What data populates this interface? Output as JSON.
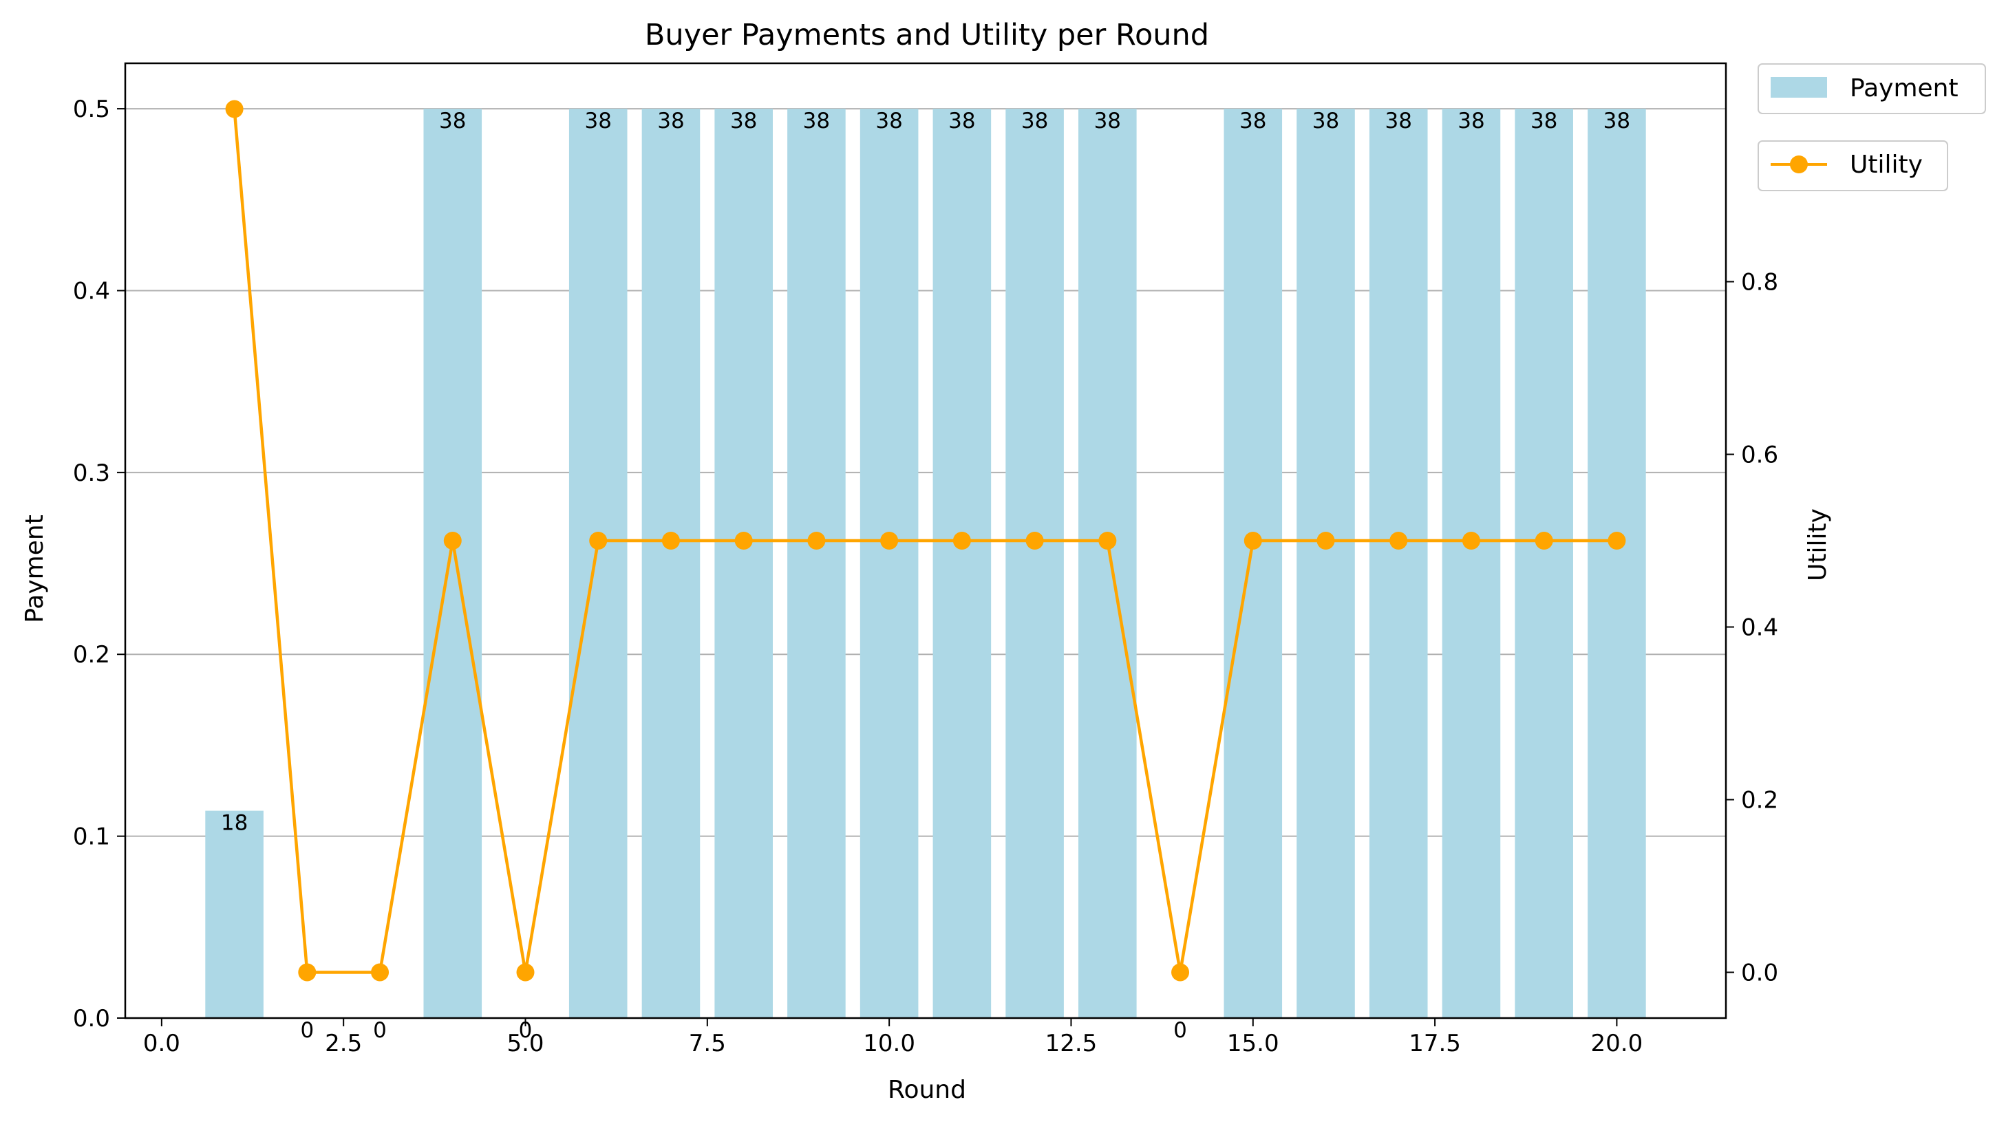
{
  "chart_data": {
    "type": "bar+line",
    "title": "Buyer Payments and Utility per Round",
    "xlabel": "Round",
    "ylabel_left": "Payment",
    "ylabel_right": "Utility",
    "xlim": [
      -0.5,
      21.5
    ],
    "ylim_left": [
      0,
      0.525
    ],
    "ylim_right": [
      -0.053,
      1.053
    ],
    "x_ticks": [
      "0.0",
      "2.5",
      "5.0",
      "7.5",
      "10.0",
      "12.5",
      "15.0",
      "17.5",
      "20.0"
    ],
    "x_tick_values": [
      0,
      2.5,
      5,
      7.5,
      10,
      12.5,
      15,
      17.5,
      20
    ],
    "y_left_ticks": [
      "0.0",
      "0.1",
      "0.2",
      "0.3",
      "0.4",
      "0.5"
    ],
    "y_left_tick_values": [
      0,
      0.1,
      0.2,
      0.3,
      0.4,
      0.5
    ],
    "y_right_ticks": [
      "0.0",
      "0.2",
      "0.4",
      "0.6",
      "0.8"
    ],
    "y_right_tick_values": [
      0,
      0.2,
      0.4,
      0.6,
      0.8
    ],
    "grid": "horizontal (left axis)",
    "rounds": [
      1,
      2,
      3,
      4,
      5,
      6,
      7,
      8,
      9,
      10,
      11,
      12,
      13,
      14,
      15,
      16,
      17,
      18,
      19,
      20
    ],
    "series": [
      {
        "name": "Payment",
        "kind": "bar",
        "axis": "left",
        "color": "#add8e6",
        "values": [
          0.114,
          0,
          0,
          0.5,
          0,
          0.5,
          0.5,
          0.5,
          0.5,
          0.5,
          0.5,
          0.5,
          0.5,
          0,
          0.5,
          0.5,
          0.5,
          0.5,
          0.5,
          0.5
        ],
        "labels": [
          "18",
          "0",
          "0",
          "38",
          "0",
          "38",
          "38",
          "38",
          "38",
          "38",
          "38",
          "38",
          "38",
          "0",
          "38",
          "38",
          "38",
          "38",
          "38",
          "38"
        ]
      },
      {
        "name": "Utility",
        "kind": "line",
        "axis": "right",
        "color": "#ffa500",
        "marker": "circle",
        "values": [
          1.0,
          0,
          0,
          0.5,
          0,
          0.5,
          0.5,
          0.5,
          0.5,
          0.5,
          0.5,
          0.5,
          0.5,
          0,
          0.5,
          0.5,
          0.5,
          0.5,
          0.5,
          0.5
        ]
      }
    ],
    "legend": [
      {
        "label": "Payment",
        "placement": "upper-right outside"
      },
      {
        "label": "Utility",
        "placement": "upper-right outside, below Payment"
      }
    ]
  }
}
